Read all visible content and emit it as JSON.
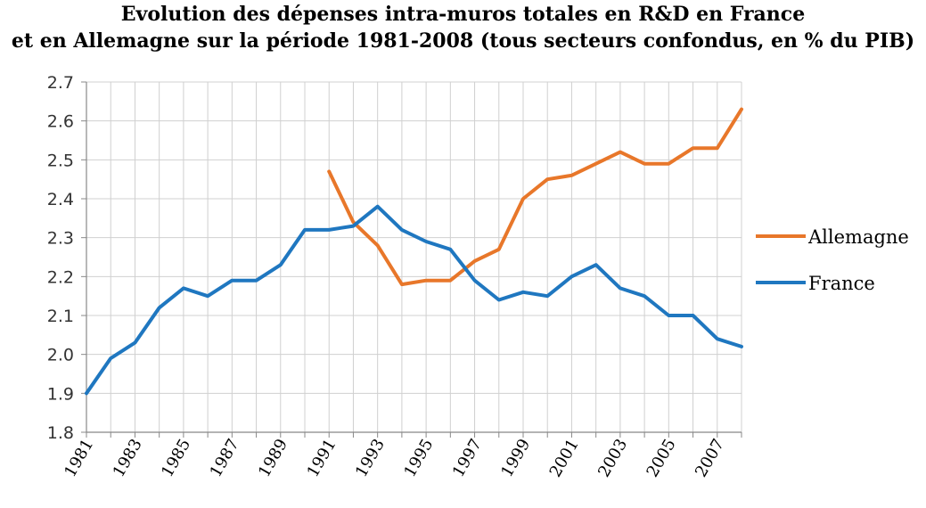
{
  "chart_data": {
    "type": "line",
    "title_line1": "Evolution des dépenses intra-muros totales en R&D en France",
    "title_line2": "et en Allemagne sur la période 1981-2008 (tous secteurs confondus, en % du PIB)",
    "x": [
      1981,
      1982,
      1983,
      1984,
      1985,
      1986,
      1987,
      1988,
      1989,
      1990,
      1991,
      1992,
      1993,
      1994,
      1995,
      1996,
      1997,
      1998,
      1999,
      2000,
      2001,
      2002,
      2003,
      2004,
      2005,
      2006,
      2007,
      2008
    ],
    "x_tick_labels": [
      "1981",
      "1983",
      "1985",
      "1987",
      "1989",
      "1991",
      "1993",
      "1995",
      "1997",
      "1999",
      "2001",
      "2003",
      "2005",
      "2007"
    ],
    "y_tick_labels": [
      "1.8",
      "1.9",
      "2.0",
      "2.1",
      "2.2",
      "2.3",
      "2.4",
      "2.5",
      "2.6",
      "2.7"
    ],
    "ylim": [
      1.8,
      2.7
    ],
    "grid": true,
    "legend_position": "right",
    "series": [
      {
        "name": "Allemagne",
        "color": "#E8772A",
        "values": [
          null,
          null,
          null,
          null,
          null,
          null,
          null,
          null,
          null,
          null,
          2.47,
          2.34,
          2.28,
          2.18,
          2.19,
          2.19,
          2.24,
          2.27,
          2.4,
          2.45,
          2.46,
          2.49,
          2.52,
          2.49,
          2.49,
          2.53,
          2.53,
          2.63
        ]
      },
      {
        "name": "France",
        "color": "#1F77C0",
        "values": [
          1.9,
          1.99,
          2.03,
          2.12,
          2.17,
          2.15,
          2.19,
          2.19,
          2.23,
          2.32,
          2.32,
          2.33,
          2.38,
          2.32,
          2.29,
          2.27,
          2.19,
          2.14,
          2.16,
          2.15,
          2.2,
          2.23,
          2.17,
          2.15,
          2.1,
          2.1,
          2.04,
          2.02
        ]
      }
    ]
  }
}
